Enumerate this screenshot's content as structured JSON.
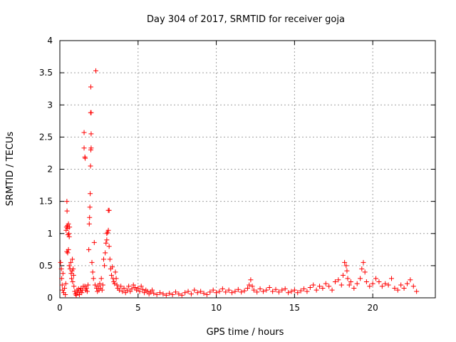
{
  "chart_data": {
    "type": "scatter",
    "title": "Day 304 of 2017, SRMTID for receiver goja",
    "xlabel": "GPS time / hours",
    "ylabel": "SRMTID / TECUs",
    "xlim": [
      0,
      24
    ],
    "ylim": [
      0,
      4
    ],
    "xticks": [
      0,
      5,
      10,
      15,
      20
    ],
    "yticks": [
      0,
      0.5,
      1,
      1.5,
      2,
      2.5,
      3,
      3.5,
      4
    ],
    "xtick_labels": [
      "0",
      "5",
      "10",
      "15",
      "20"
    ],
    "ytick_labels": [
      "0",
      "0.5",
      "1",
      "1.5",
      "2",
      "2.5",
      "3",
      "3.5",
      "4"
    ],
    "grid": true,
    "marker": "+",
    "color": "#ff0000",
    "series": [
      {
        "name": "SRMTID",
        "points": [
          [
            0.05,
            0.55
          ],
          [
            0.1,
            0.45
          ],
          [
            0.12,
            0.3
          ],
          [
            0.15,
            0.2
          ],
          [
            0.18,
            0.12
          ],
          [
            0.2,
            0.38
          ],
          [
            0.25,
            0.08
          ],
          [
            0.3,
            0.15
          ],
          [
            0.35,
            0.05
          ],
          [
            0.38,
            0.22
          ],
          [
            0.4,
            1.05
          ],
          [
            0.42,
            1.1
          ],
          [
            0.45,
            1.5
          ],
          [
            0.46,
            1.35
          ],
          [
            0.48,
            1.12
          ],
          [
            0.5,
            1.08
          ],
          [
            0.52,
            0.98
          ],
          [
            0.55,
            1.15
          ],
          [
            0.58,
            1.0
          ],
          [
            0.6,
            0.95
          ],
          [
            0.62,
            1.1
          ],
          [
            0.45,
            0.72
          ],
          [
            0.5,
            0.7
          ],
          [
            0.55,
            0.75
          ],
          [
            0.6,
            0.5
          ],
          [
            0.65,
            0.45
          ],
          [
            0.7,
            0.55
          ],
          [
            0.72,
            0.38
          ],
          [
            0.75,
            0.3
          ],
          [
            0.78,
            0.42
          ],
          [
            0.8,
            0.6
          ],
          [
            0.82,
            0.25
          ],
          [
            0.85,
            0.45
          ],
          [
            0.88,
            0.35
          ],
          [
            0.9,
            0.18
          ],
          [
            0.95,
            0.1
          ],
          [
            1.0,
            0.06
          ],
          [
            1.05,
            0.04
          ],
          [
            1.1,
            0.12
          ],
          [
            1.15,
            0.08
          ],
          [
            1.2,
            0.14
          ],
          [
            1.25,
            0.05
          ],
          [
            1.3,
            0.1
          ],
          [
            1.35,
            0.15
          ],
          [
            1.4,
            0.08
          ],
          [
            1.45,
            0.12
          ],
          [
            1.5,
            0.18
          ],
          [
            1.55,
            2.57
          ],
          [
            1.55,
            2.33
          ],
          [
            1.6,
            2.19
          ],
          [
            1.62,
            2.17
          ],
          [
            1.6,
            0.18
          ],
          [
            1.65,
            0.12
          ],
          [
            1.7,
            0.15
          ],
          [
            1.75,
            0.1
          ],
          [
            1.8,
            0.2
          ],
          [
            1.85,
            0.75
          ],
          [
            1.88,
            1.15
          ],
          [
            1.9,
            1.25
          ],
          [
            1.92,
            1.41
          ],
          [
            1.94,
            1.62
          ],
          [
            1.96,
            2.05
          ],
          [
            1.98,
            2.3
          ],
          [
            2.0,
            2.33
          ],
          [
            2.0,
            2.55
          ],
          [
            1.97,
            2.88
          ],
          [
            2.0,
            2.88
          ],
          [
            1.98,
            3.28
          ],
          [
            2.05,
            0.55
          ],
          [
            2.1,
            0.4
          ],
          [
            2.15,
            0.3
          ],
          [
            2.2,
            0.86
          ],
          [
            2.25,
            0.2
          ],
          [
            2.3,
            3.53
          ],
          [
            2.35,
            0.15
          ],
          [
            2.4,
            0.1
          ],
          [
            2.45,
            0.18
          ],
          [
            2.5,
            0.12
          ],
          [
            2.55,
            0.22
          ],
          [
            2.6,
            0.15
          ],
          [
            2.65,
            0.3
          ],
          [
            2.7,
            0.12
          ],
          [
            2.75,
            0.2
          ],
          [
            2.8,
            0.6
          ],
          [
            2.85,
            0.5
          ],
          [
            2.9,
            0.7
          ],
          [
            2.95,
            0.85
          ],
          [
            3.0,
            0.9
          ],
          [
            3.0,
            1.0
          ],
          [
            3.05,
            1.02
          ],
          [
            3.1,
            1.05
          ],
          [
            3.1,
            1.36
          ],
          [
            3.15,
            1.36
          ],
          [
            3.15,
            0.8
          ],
          [
            3.2,
            0.6
          ],
          [
            3.25,
            0.45
          ],
          [
            3.3,
            0.35
          ],
          [
            3.35,
            0.48
          ],
          [
            3.4,
            0.3
          ],
          [
            3.45,
            0.25
          ],
          [
            3.5,
            0.22
          ],
          [
            3.55,
            0.4
          ],
          [
            3.6,
            0.3
          ],
          [
            3.65,
            0.2
          ],
          [
            3.7,
            0.15
          ],
          [
            3.8,
            0.12
          ],
          [
            3.9,
            0.18
          ],
          [
            4.0,
            0.1
          ],
          [
            4.1,
            0.15
          ],
          [
            4.2,
            0.08
          ],
          [
            4.3,
            0.12
          ],
          [
            4.4,
            0.18
          ],
          [
            4.5,
            0.1
          ],
          [
            4.6,
            0.14
          ],
          [
            4.7,
            0.2
          ],
          [
            4.8,
            0.16
          ],
          [
            4.9,
            0.12
          ],
          [
            5.0,
            0.15
          ],
          [
            5.1,
            0.1
          ],
          [
            5.2,
            0.18
          ],
          [
            5.3,
            0.13
          ],
          [
            5.4,
            0.08
          ],
          [
            5.5,
            0.12
          ],
          [
            5.6,
            0.1
          ],
          [
            5.7,
            0.06
          ],
          [
            5.8,
            0.09
          ],
          [
            5.9,
            0.12
          ],
          [
            6.0,
            0.07
          ],
          [
            6.2,
            0.05
          ],
          [
            6.4,
            0.08
          ],
          [
            6.6,
            0.06
          ],
          [
            6.8,
            0.04
          ],
          [
            7.0,
            0.07
          ],
          [
            7.2,
            0.05
          ],
          [
            7.4,
            0.09
          ],
          [
            7.6,
            0.06
          ],
          [
            7.8,
            0.04
          ],
          [
            8.0,
            0.08
          ],
          [
            8.2,
            0.1
          ],
          [
            8.4,
            0.06
          ],
          [
            8.6,
            0.12
          ],
          [
            8.8,
            0.08
          ],
          [
            9.0,
            0.1
          ],
          [
            9.2,
            0.07
          ],
          [
            9.4,
            0.05
          ],
          [
            9.6,
            0.09
          ],
          [
            9.8,
            0.12
          ],
          [
            10.0,
            0.08
          ],
          [
            10.2,
            0.1
          ],
          [
            10.4,
            0.14
          ],
          [
            10.6,
            0.09
          ],
          [
            10.8,
            0.12
          ],
          [
            11.0,
            0.08
          ],
          [
            11.2,
            0.1
          ],
          [
            11.4,
            0.13
          ],
          [
            11.6,
            0.09
          ],
          [
            11.8,
            0.11
          ],
          [
            12.0,
            0.15
          ],
          [
            12.1,
            0.2
          ],
          [
            12.2,
            0.28
          ],
          [
            12.3,
            0.18
          ],
          [
            12.4,
            0.12
          ],
          [
            12.6,
            0.09
          ],
          [
            12.8,
            0.14
          ],
          [
            13.0,
            0.1
          ],
          [
            13.2,
            0.12
          ],
          [
            13.4,
            0.16
          ],
          [
            13.6,
            0.1
          ],
          [
            13.8,
            0.13
          ],
          [
            14.0,
            0.09
          ],
          [
            14.2,
            0.12
          ],
          [
            14.4,
            0.14
          ],
          [
            14.6,
            0.08
          ],
          [
            14.8,
            0.1
          ],
          [
            15.0,
            0.12
          ],
          [
            15.2,
            0.08
          ],
          [
            15.4,
            0.11
          ],
          [
            15.6,
            0.14
          ],
          [
            15.8,
            0.1
          ],
          [
            16.0,
            0.16
          ],
          [
            16.2,
            0.2
          ],
          [
            16.4,
            0.12
          ],
          [
            16.6,
            0.18
          ],
          [
            16.8,
            0.15
          ],
          [
            17.0,
            0.22
          ],
          [
            17.2,
            0.18
          ],
          [
            17.4,
            0.12
          ],
          [
            17.6,
            0.25
          ],
          [
            17.8,
            0.28
          ],
          [
            18.0,
            0.2
          ],
          [
            18.1,
            0.35
          ],
          [
            18.2,
            0.55
          ],
          [
            18.3,
            0.5
          ],
          [
            18.35,
            0.42
          ],
          [
            18.4,
            0.3
          ],
          [
            18.5,
            0.2
          ],
          [
            18.6,
            0.25
          ],
          [
            18.8,
            0.15
          ],
          [
            19.0,
            0.22
          ],
          [
            19.2,
            0.3
          ],
          [
            19.3,
            0.45
          ],
          [
            19.4,
            0.55
          ],
          [
            19.5,
            0.4
          ],
          [
            19.6,
            0.25
          ],
          [
            19.8,
            0.18
          ],
          [
            20.0,
            0.22
          ],
          [
            20.2,
            0.3
          ],
          [
            20.4,
            0.25
          ],
          [
            20.6,
            0.18
          ],
          [
            20.8,
            0.22
          ],
          [
            21.0,
            0.2
          ],
          [
            21.2,
            0.3
          ],
          [
            21.4,
            0.15
          ],
          [
            21.6,
            0.12
          ],
          [
            21.8,
            0.2
          ],
          [
            22.0,
            0.15
          ],
          [
            22.2,
            0.22
          ],
          [
            22.4,
            0.28
          ],
          [
            22.6,
            0.18
          ],
          [
            22.8,
            0.1
          ]
        ]
      }
    ]
  }
}
